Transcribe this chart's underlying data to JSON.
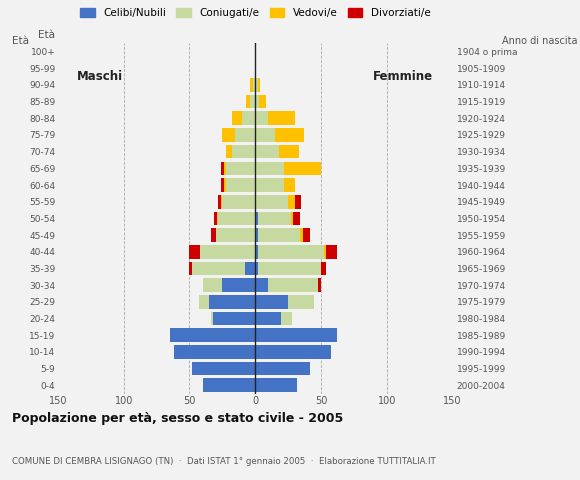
{
  "age_groups": [
    "0-4",
    "5-9",
    "10-14",
    "15-19",
    "20-24",
    "25-29",
    "30-34",
    "35-39",
    "40-44",
    "45-49",
    "50-54",
    "55-59",
    "60-64",
    "65-69",
    "70-74",
    "75-79",
    "80-84",
    "85-89",
    "90-94",
    "95-99",
    "100+"
  ],
  "birth_years": [
    "2000-2004",
    "1995-1999",
    "1990-1994",
    "1985-1989",
    "1980-1984",
    "1975-1979",
    "1970-1974",
    "1965-1969",
    "1960-1964",
    "1955-1959",
    "1950-1954",
    "1945-1949",
    "1940-1944",
    "1935-1939",
    "1930-1934",
    "1925-1929",
    "1920-1924",
    "1915-1919",
    "1910-1914",
    "1905-1909",
    "1904 o prima"
  ],
  "male_celibe": [
    40,
    48,
    62,
    65,
    32,
    35,
    25,
    8,
    0,
    0,
    0,
    0,
    0,
    0,
    0,
    0,
    0,
    0,
    0,
    0,
    0
  ],
  "male_coniugato": [
    0,
    0,
    0,
    0,
    2,
    8,
    15,
    40,
    42,
    30,
    28,
    25,
    22,
    22,
    18,
    15,
    10,
    4,
    2,
    0,
    0
  ],
  "male_vedovo": [
    0,
    0,
    0,
    0,
    0,
    0,
    0,
    0,
    0,
    0,
    1,
    1,
    2,
    2,
    4,
    10,
    8,
    3,
    2,
    0,
    0
  ],
  "male_divorziato": [
    0,
    0,
    0,
    0,
    0,
    0,
    0,
    2,
    8,
    4,
    2,
    2,
    2,
    2,
    0,
    0,
    0,
    0,
    0,
    0,
    0
  ],
  "female_nubile": [
    32,
    42,
    58,
    62,
    20,
    25,
    10,
    2,
    2,
    2,
    2,
    0,
    0,
    0,
    0,
    0,
    0,
    0,
    0,
    0,
    0
  ],
  "female_coniugata": [
    0,
    0,
    0,
    0,
    8,
    20,
    38,
    48,
    50,
    32,
    25,
    25,
    22,
    22,
    18,
    15,
    10,
    3,
    2,
    0,
    0
  ],
  "female_vedova": [
    0,
    0,
    0,
    0,
    0,
    0,
    0,
    0,
    2,
    2,
    2,
    5,
    8,
    28,
    15,
    22,
    20,
    5,
    2,
    0,
    0
  ],
  "female_divorziata": [
    0,
    0,
    0,
    0,
    0,
    0,
    2,
    4,
    8,
    6,
    5,
    5,
    0,
    0,
    0,
    0,
    0,
    0,
    0,
    0,
    0
  ],
  "colors": {
    "celibe": "#4472c4",
    "coniugato": "#c5d9a0",
    "vedovo": "#ffc000",
    "divorziato": "#cc0000"
  },
  "legend_labels": [
    "Celibi/Nubili",
    "Coniugati/e",
    "Vedovi/e",
    "Divorziati/e"
  ],
  "title": "Popolazione per età, sesso e stato civile - 2005",
  "subtitle": "COMUNE DI CEMBRA LISIGNAGO (TN)  ·  Dati ISTAT 1° gennaio 2005  ·  Elaborazione TUTTITALIA.IT",
  "xlabel_maschi": "Maschi",
  "xlabel_femmine": "Femmine",
  "eta_label": "Età",
  "anno_label": "Anno di nascita",
  "xlim": 150,
  "background_color": "#f2f2f2"
}
